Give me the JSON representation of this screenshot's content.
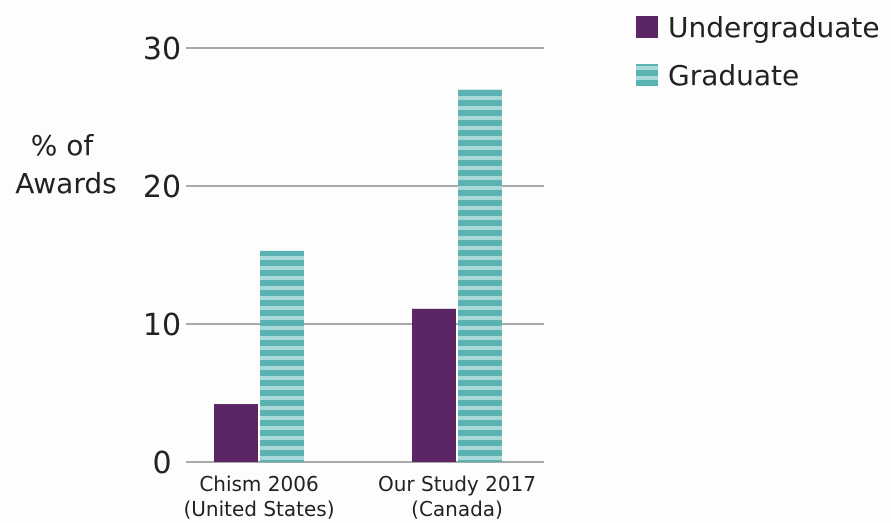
{
  "chart_data": {
    "type": "bar",
    "title": "",
    "ylabel": [
      "% of",
      "Awards"
    ],
    "xlabel": "",
    "ylim": [
      0,
      30
    ],
    "yticks": [
      0,
      10,
      20,
      30
    ],
    "grid": true,
    "legend_position": "top-right",
    "categories": [
      [
        "Chism 2006",
        "(United States)"
      ],
      [
        "Our Study 2017",
        "(Canada)"
      ]
    ],
    "series": [
      {
        "name": "Undergraduate",
        "values": [
          4.2,
          11.1
        ],
        "color": "#5c2566",
        "pattern": "solid"
      },
      {
        "name": "Graduate",
        "values": [
          15.3,
          27.0
        ],
        "color": "#5bb2b2",
        "stripe_color": "#a9d8d8",
        "pattern": "horizontal-stripes"
      }
    ]
  }
}
